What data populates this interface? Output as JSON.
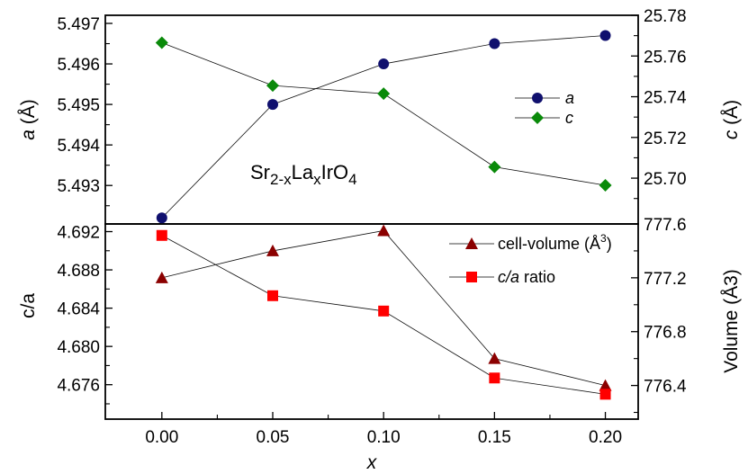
{
  "chart_data": [
    {
      "type": "scatter",
      "panel": "top",
      "x": [
        0.0,
        0.05,
        0.1,
        0.15,
        0.2
      ],
      "series": [
        {
          "name": "a",
          "axis": "left",
          "values": [
            5.4922,
            5.495,
            5.496,
            5.4965,
            5.4967
          ],
          "color": "#10106e",
          "marker": "circle"
        },
        {
          "name": "c",
          "axis": "right",
          "values": [
            25.7665,
            25.7455,
            25.7415,
            25.7055,
            25.6965
          ],
          "color": "#0a8a0a",
          "marker": "diamond"
        }
      ],
      "yleft": {
        "label_italic": "a",
        "label_rest": " (Å)",
        "ylim": [
          5.49205,
          5.4972
        ],
        "ticks": [
          "5.493",
          "5.494",
          "5.495",
          "5.496",
          "5.497"
        ]
      },
      "yright": {
        "label_italic": "c",
        "label_rest": " (Å)",
        "ylim": [
          25.6775,
          25.78
        ],
        "ticks": [
          "25.70",
          "25.72",
          "25.74",
          "25.76",
          "25.78"
        ]
      },
      "annotation": {
        "base1": "Sr",
        "sub1": "2-x",
        "base2": "La",
        "sub2": "x",
        "base3": "IrO",
        "sub3": "4"
      },
      "legend_position": "center-right"
    },
    {
      "type": "scatter",
      "panel": "bottom",
      "x": [
        0.0,
        0.05,
        0.1,
        0.15,
        0.2
      ],
      "series": [
        {
          "name": "cell-volume (Å3)",
          "axis": "right",
          "values": [
            777.2,
            777.4,
            777.55,
            776.6,
            776.4
          ],
          "color": "#8b0000",
          "marker": "triangle"
        },
        {
          "name": "c/a ratio",
          "axis": "left",
          "values": [
            4.6916,
            4.6853,
            4.6837,
            4.6767,
            4.675
          ],
          "color": "#ff0000",
          "marker": "square"
        }
      ],
      "yleft": {
        "label": "c/a",
        "ylim": [
          4.6724,
          4.6928
        ],
        "ticks": [
          "4.676",
          "4.680",
          "4.684",
          "4.688",
          "4.692"
        ]
      },
      "yright": {
        "label": "Volume (Å3)",
        "ylim": [
          776.15,
          777.6
        ],
        "ticks": [
          "776.4",
          "776.8",
          "777.2",
          "777.6"
        ]
      },
      "legend": {
        "volume_text": "cell-volume (Å",
        "volume_sup": "3",
        "volume_close": ")",
        "ratio_italic": "c/a",
        "ratio_rest": " ratio"
      },
      "legend_position": "top-right"
    }
  ],
  "xaxis": {
    "label": "x",
    "ticks": [
      "0.00",
      "0.05",
      "0.10",
      "0.15",
      "0.20"
    ],
    "tick_values": [
      0.0,
      0.05,
      0.1,
      0.15,
      0.2
    ],
    "xlim": [
      -0.0255,
      0.2148
    ]
  }
}
